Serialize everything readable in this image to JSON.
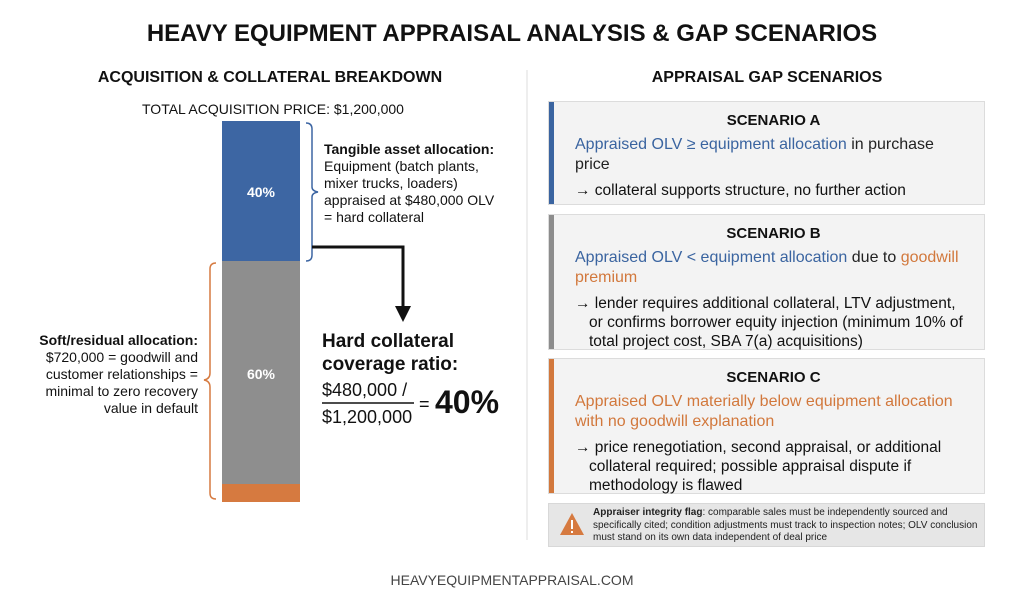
{
  "title": "HEAVY EQUIPMENT APPRAISAL ANALYSIS & GAP SCENARIOS",
  "left": {
    "heading": "ACQUISITION & COLLATERAL BREAKDOWN",
    "total": "TOTAL ACQUISITION PRICE: $1,200,000",
    "bar_top_label": "40%",
    "bar_bottom_label": "60%",
    "tangible": {
      "heading": "Tangible asset allocation:",
      "body": "Equipment (batch plants, mixer trucks, loaders) appraised at $480,000 OLV = hard collateral"
    },
    "soft": {
      "heading": "Soft/residual allocation:",
      "body": "$720,000 = goodwill and customer relationships = minimal to zero recovery value in default"
    },
    "ratio": {
      "heading": "Hard collateral coverage ratio:",
      "numerator": "$480,000 /",
      "denominator": "$1,200,000",
      "equals": "=",
      "result": "40%"
    }
  },
  "right": {
    "heading": "APPRAISAL GAP SCENARIOS",
    "scenarios": [
      {
        "title": "SCENARIO A",
        "color": "#3a64a0",
        "parts": [
          {
            "text": "Appraised OLV ≥ equipment allocation",
            "color": "#3a64a0"
          },
          {
            "text": " in purchase price",
            "color": "#222222"
          }
        ],
        "action": "→ collateral supports structure, no further action"
      },
      {
        "title": "SCENARIO B",
        "color": "#8c8c8c",
        "parts": [
          {
            "text": "Appraised OLV < equipment allocation",
            "color": "#3a64a0"
          },
          {
            "text": " due to ",
            "color": "#222222"
          },
          {
            "text": "goodwill premium",
            "color": "#d2783c"
          }
        ],
        "action": "→ lender requires additional collateral, LTV adjustment, or confirms borrower equity injection (minimum 10% of total project cost, SBA 7(a) acquisitions)"
      },
      {
        "title": "SCENARIO C",
        "color": "#d2783c",
        "parts": [
          {
            "text": "Appraised OLV materially below equipment allocation with no goodwill explanation",
            "color": "#d2783c"
          }
        ],
        "action": "→ price renegotiation, second appraisal, or additional collateral required; possible appraisal dispute if methodology is flawed"
      }
    ],
    "flag": {
      "heading": "Appraiser integrity flag",
      "body": ": comparable sales must be independently sourced and specifically cited; condition adjustments must track to inspection notes; OLV conclusion must stand on its own data independent of deal price"
    }
  },
  "footer": "HEAVYEQUIPMENTAPPRAISAL.COM"
}
